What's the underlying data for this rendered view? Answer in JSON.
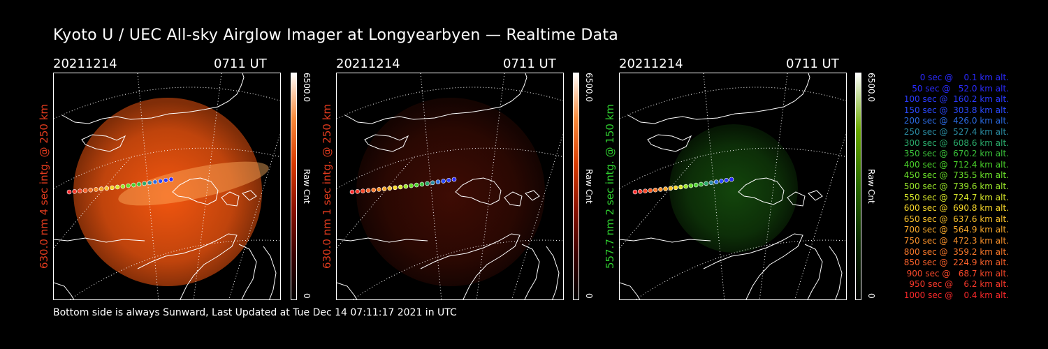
{
  "title": "Kyoto U / UEC All-sky Airglow Imager at Longyearbyen — Realtime Data",
  "footer": "Bottom side is always Sunward, Last Updated at Tue Dec 14 07:11:17 2021 in UTC",
  "panels": [
    {
      "date": "20211214",
      "time": "0711 UT",
      "ylabel": "630.0 nm 4 sec intg. @ 250 km",
      "ylabel_color": "#e23b1e",
      "cbar_max": "6500.0",
      "cbar_unit": "Raw Cnt",
      "cbar_min": "0",
      "tint": "#ff5a10",
      "intensity": "strong"
    },
    {
      "date": "20211214",
      "time": "0711 UT",
      "ylabel": "630.0 nm 1 sec intg. @ 250 km",
      "ylabel_color": "#e23b1e",
      "cbar_max": "6500.0",
      "cbar_unit": "Raw Cnt",
      "cbar_min": "0",
      "tint": "#8a1a08",
      "intensity": "faint"
    },
    {
      "date": "20211214",
      "time": "0711 UT",
      "ylabel": "557.7 nm 2 sec intg. @ 150 km",
      "ylabel_color": "#2fcf2f",
      "cbar_max": "6500.0",
      "cbar_unit": "Raw Cnt",
      "cbar_min": "0",
      "tint": "#2a9a1a",
      "intensity": "faint"
    }
  ],
  "legend": [
    {
      "text": "0 sec @    0.1 km alt.",
      "color": "#2a2aff"
    },
    {
      "text": "50 sec @   52.0 km alt.",
      "color": "#2a2aff"
    },
    {
      "text": "100 sec @  160.2 km alt.",
      "color": "#2a3aff"
    },
    {
      "text": "150 sec @  303.8 km alt.",
      "color": "#2a4aff"
    },
    {
      "text": "200 sec @  426.0 km alt.",
      "color": "#2a6ae0"
    },
    {
      "text": "250 sec @  527.4 km alt.",
      "color": "#2a8aa0"
    },
    {
      "text": "300 sec @  608.6 km alt.",
      "color": "#2aaa6a"
    },
    {
      "text": "350 sec @  670.2 km alt.",
      "color": "#3ac23a"
    },
    {
      "text": "400 sec @  712.4 km alt.",
      "color": "#4ad22a"
    },
    {
      "text": "450 sec @  735.5 km alt.",
      "color": "#6ae02a"
    },
    {
      "text": "500 sec @  739.6 km alt.",
      "color": "#9ae82a"
    },
    {
      "text": "550 sec @  724.7 km alt.",
      "color": "#d8e82a"
    },
    {
      "text": "600 sec @  690.8 km alt.",
      "color": "#f8d82a"
    },
    {
      "text": "650 sec @  637.6 km alt.",
      "color": "#f8c02a"
    },
    {
      "text": "700 sec @  564.9 km alt.",
      "color": "#f8a82a"
    },
    {
      "text": "750 sec @  472.3 km alt.",
      "color": "#f8902a"
    },
    {
      "text": "800 sec @  359.2 km alt.",
      "color": "#f8782a"
    },
    {
      "text": "850 sec @  224.9 km alt.",
      "color": "#f8602a"
    },
    {
      "text": "900 sec @   68.7 km alt.",
      "color": "#f8482a"
    },
    {
      "text": "950 sec @    6.2 km alt.",
      "color": "#f8382a"
    },
    {
      "text": "1000 sec @    0.4 km alt.",
      "color": "#f8282a"
    }
  ]
}
